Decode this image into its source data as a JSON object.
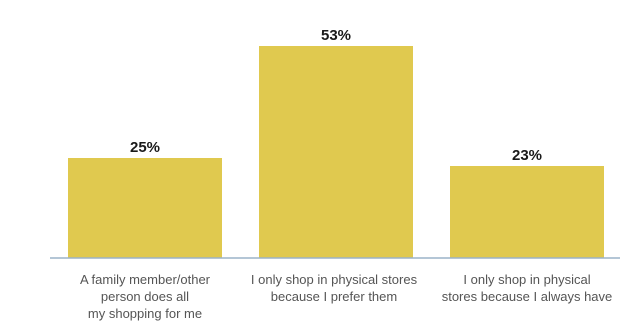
{
  "colors": {
    "bar": "#e0c94f",
    "baseline": "#9bb3c9",
    "value_text": "#1a1a1a",
    "category_text": "#555555"
  },
  "chart_data": {
    "type": "bar",
    "categories": [
      [
        "A family member/other",
        "person does all",
        "my shopping for me"
      ],
      [
        "I only shop in physical stores",
        "because I prefer them"
      ],
      [
        "I only shop in physical",
        "stores because I always have"
      ]
    ],
    "values": [
      25,
      53,
      23
    ],
    "value_labels": [
      "25%",
      "53%",
      "23%"
    ],
    "ylim": [
      0,
      58
    ],
    "grid": false,
    "legend": "none"
  }
}
